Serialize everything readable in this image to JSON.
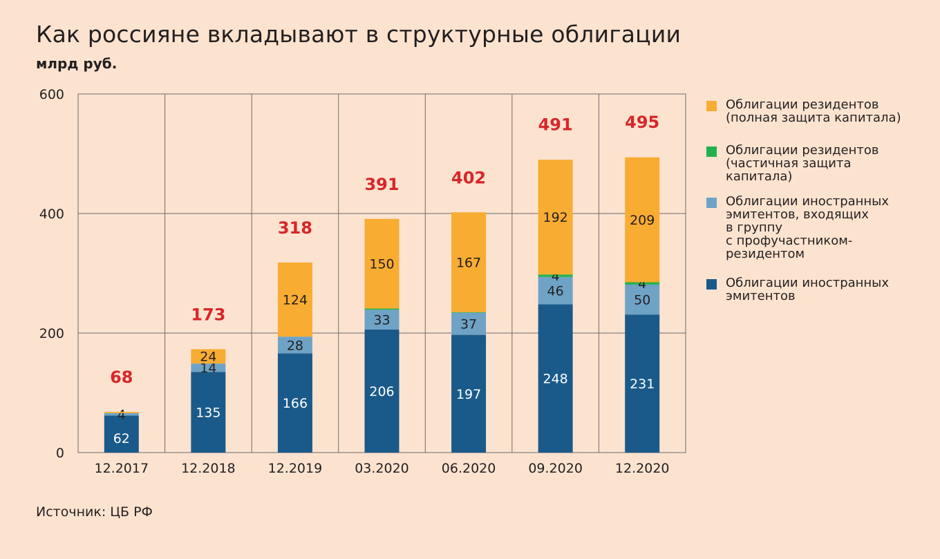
{
  "title": "Как россияне вкладывают в структурные облигации",
  "subtitle": "млрд руб.",
  "source": "Источник: ЦБ РФ",
  "colors": {
    "background": "#fce3d0",
    "foreign": "#1a5a8a",
    "foreign_group": "#6fa3c6",
    "resident_partial": "#23b14d",
    "resident_full": "#f8ac32",
    "total_label": "#d8262a"
  },
  "chart_data": {
    "type": "bar",
    "stacked": true,
    "categories": [
      "12.2017",
      "12.2018",
      "12.2019",
      "03.2020",
      "06.2020",
      "09.2020",
      "12.2020"
    ],
    "ylim": [
      0,
      600
    ],
    "yticks": [
      "0",
      "200",
      "400",
      "600"
    ],
    "grid": true,
    "legend_position": "right",
    "series": [
      {
        "name": "Облигации иностранных эмитентов",
        "color": "#1a5a8a",
        "values": [
          62,
          135,
          166,
          206,
          197,
          248,
          231
        ],
        "labels": [
          "62",
          "135",
          "166",
          "206",
          "197",
          "248",
          "231"
        ]
      },
      {
        "name": "Облигации иностранных эмитентов, входящих в группу с профучастником-резидентом",
        "color": "#6fa3c6",
        "values": [
          4,
          14,
          28,
          33,
          37,
          46,
          50
        ],
        "labels": [
          "4",
          "14",
          "28",
          "33",
          "37",
          "46",
          "50"
        ]
      },
      {
        "name": "Облигации резидентов (частичная защита капитала)",
        "color": "#23b14d",
        "values": [
          0,
          0,
          0,
          2,
          1,
          4,
          4
        ],
        "labels": [
          "",
          "",
          "",
          "",
          "",
          "4",
          "4"
        ]
      },
      {
        "name": "Облигации резидентов (полная защита капитала)",
        "color": "#f8ac32",
        "values": [
          2,
          24,
          124,
          150,
          167,
          192,
          209
        ],
        "labels": [
          "",
          "24",
          "124",
          "150",
          "167",
          "192",
          "209"
        ]
      }
    ],
    "totals": [
      "68",
      "173",
      "318",
      "391",
      "402",
      "491",
      "495"
    ]
  },
  "legend": [
    {
      "text": "Облигации резидентов\n(полная защита капитала)",
      "color": "#f8ac32"
    },
    {
      "text": "Облигации резидентов\n(частичная защита\nкапитала)",
      "color": "#23b14d"
    },
    {
      "text": "Облигации иностранных\nэмитентов, входящих\nв группу\nс профучастником-\nрезидентом",
      "color": "#6fa3c6"
    },
    {
      "text": "Облигации иностранных\nэмитентов",
      "color": "#1a5a8a"
    }
  ]
}
